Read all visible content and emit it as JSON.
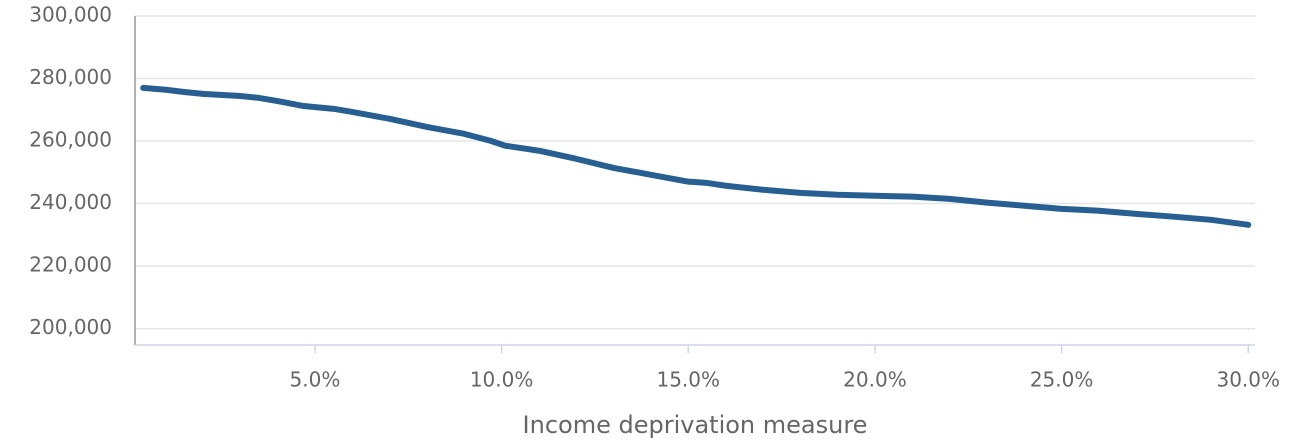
{
  "chart_data": {
    "type": "line",
    "x_label": "Income deprivation measure",
    "x": [
      0.4,
      1,
      1.5,
      2,
      3,
      3.5,
      4,
      4.7,
      5.5,
      6,
      7,
      8,
      9,
      9.7,
      10.1,
      10.5,
      11,
      12,
      13,
      14,
      15,
      15.5,
      16,
      17,
      18,
      19,
      20,
      21,
      22,
      23,
      24,
      25,
      25.5,
      26,
      27,
      28,
      29,
      30
    ],
    "series": [
      {
        "color": "#285f93",
        "values": [
          277000,
          276400,
          275700,
          275100,
          274400,
          273800,
          272800,
          271200,
          270300,
          269300,
          267100,
          264500,
          262300,
          260100,
          258500,
          257800,
          256900,
          254300,
          251400,
          249200,
          247000,
          246600,
          245700,
          244400,
          243400,
          242800,
          242500,
          242200,
          241500,
          240300,
          239300,
          238300,
          238000,
          237700,
          236700,
          235800,
          234800,
          233200
        ]
      }
    ],
    "xlim": [
      0.18,
      30.1
    ],
    "ylim": [
      194750,
      300000
    ],
    "xticks": [
      {
        "value": 5,
        "label": "5.0%"
      },
      {
        "value": 10,
        "label": "10.0%"
      },
      {
        "value": 15,
        "label": "15.0%"
      },
      {
        "value": 20,
        "label": "20.0%"
      },
      {
        "value": 25,
        "label": "25.0%"
      },
      {
        "value": 30,
        "label": "30.0%"
      }
    ],
    "yticks": [
      {
        "value": 200000,
        "label": "200,000"
      },
      {
        "value": 220000,
        "label": "220,000"
      },
      {
        "value": 240000,
        "label": "240,000"
      },
      {
        "value": 260000,
        "label": "260,000"
      },
      {
        "value": 280000,
        "label": "280,000"
      },
      {
        "value": 300000,
        "label": "300,000"
      }
    ],
    "grid": true
  }
}
